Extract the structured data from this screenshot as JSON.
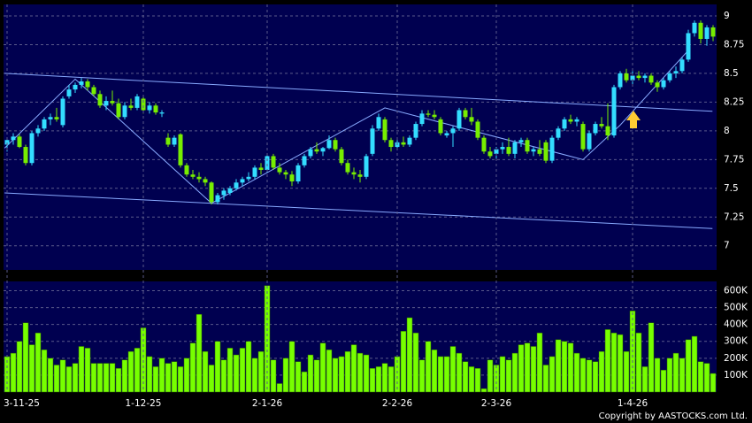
{
  "chart_data": [
    {
      "type": "candlestick",
      "up_color": "#33ddff",
      "down_color": "#77ee00",
      "ylim": [
        6.79,
        9.1
      ],
      "yticks": [
        7,
        7.25,
        7.5,
        7.75,
        8,
        8.25,
        8.5,
        8.75,
        9
      ],
      "grid": true,
      "ohlc": [
        [
          7.88,
          7.92,
          7.82,
          7.92
        ],
        [
          7.92,
          7.98,
          7.88,
          7.95
        ],
        [
          7.95,
          7.97,
          7.85,
          7.86
        ],
        [
          7.86,
          7.88,
          7.7,
          7.72
        ],
        [
          7.72,
          8.0,
          7.7,
          7.98
        ],
        [
          7.98,
          8.05,
          7.95,
          8.02
        ],
        [
          8.02,
          8.12,
          8.0,
          8.1
        ],
        [
          8.1,
          8.15,
          8.05,
          8.12
        ],
        [
          8.12,
          8.2,
          8.08,
          8.1
        ],
        [
          8.05,
          8.3,
          8.03,
          8.28
        ],
        [
          8.3,
          8.4,
          8.28,
          8.36
        ],
        [
          8.36,
          8.42,
          8.33,
          8.4
        ],
        [
          8.4,
          8.46,
          8.37,
          8.43
        ],
        [
          8.43,
          8.45,
          8.35,
          8.38
        ],
        [
          8.38,
          8.4,
          8.3,
          8.32
        ],
        [
          8.32,
          8.35,
          8.2,
          8.22
        ],
        [
          8.22,
          8.3,
          8.18,
          8.26
        ],
        [
          8.26,
          8.35,
          8.22,
          8.24
        ],
        [
          8.24,
          8.28,
          8.1,
          8.12
        ],
        [
          8.12,
          8.25,
          8.1,
          8.22
        ],
        [
          8.22,
          8.28,
          8.18,
          8.2
        ],
        [
          8.2,
          8.32,
          8.18,
          8.3
        ],
        [
          8.28,
          8.3,
          8.15,
          8.18
        ],
        [
          8.18,
          8.25,
          8.15,
          8.22
        ],
        [
          8.22,
          8.24,
          8.14,
          8.16
        ],
        [
          8.15,
          8.18,
          8.12,
          8.16
        ],
        [
          7.94,
          7.98,
          7.86,
          7.88
        ],
        [
          7.88,
          7.96,
          7.86,
          7.94
        ],
        [
          7.97,
          7.98,
          7.68,
          7.7
        ],
        [
          7.7,
          7.72,
          7.6,
          7.62
        ],
        [
          7.62,
          7.66,
          7.58,
          7.6
        ],
        [
          7.6,
          7.64,
          7.55,
          7.58
        ],
        [
          7.58,
          7.6,
          7.52,
          7.55
        ],
        [
          7.55,
          7.56,
          7.36,
          7.38
        ],
        [
          7.38,
          7.46,
          7.36,
          7.44
        ],
        [
          7.44,
          7.5,
          7.4,
          7.48
        ],
        [
          7.46,
          7.52,
          7.44,
          7.5
        ],
        [
          7.5,
          7.58,
          7.48,
          7.55
        ],
        [
          7.55,
          7.6,
          7.52,
          7.58
        ],
        [
          7.58,
          7.64,
          7.56,
          7.6
        ],
        [
          7.6,
          7.7,
          7.58,
          7.68
        ],
        [
          7.68,
          7.72,
          7.62,
          7.66
        ],
        [
          7.66,
          7.8,
          7.64,
          7.78
        ],
        [
          7.78,
          7.8,
          7.66,
          7.68
        ],
        [
          7.68,
          7.72,
          7.62,
          7.64
        ],
        [
          7.64,
          7.66,
          7.58,
          7.62
        ],
        [
          7.62,
          7.65,
          7.52,
          7.56
        ],
        [
          7.56,
          7.72,
          7.54,
          7.7
        ],
        [
          7.7,
          7.8,
          7.68,
          7.78
        ],
        [
          7.78,
          7.86,
          7.76,
          7.84
        ],
        [
          7.84,
          7.9,
          7.8,
          7.82
        ],
        [
          7.82,
          7.86,
          7.78,
          7.85
        ],
        [
          7.85,
          7.96,
          7.84,
          7.92
        ],
        [
          7.92,
          7.94,
          7.82,
          7.84
        ],
        [
          7.84,
          7.86,
          7.7,
          7.72
        ],
        [
          7.72,
          7.75,
          7.62,
          7.64
        ],
        [
          7.64,
          7.68,
          7.58,
          7.62
        ],
        [
          7.62,
          7.66,
          7.55,
          7.6
        ],
        [
          7.6,
          7.8,
          7.58,
          7.78
        ],
        [
          7.8,
          8.05,
          7.78,
          8.02
        ],
        [
          8.02,
          8.15,
          8.0,
          8.12
        ],
        [
          8.1,
          8.12,
          7.9,
          7.92
        ],
        [
          7.92,
          7.94,
          7.82,
          7.86
        ],
        [
          7.86,
          7.92,
          7.84,
          7.9
        ],
        [
          7.9,
          7.95,
          7.86,
          7.88
        ],
        [
          7.88,
          7.96,
          7.86,
          7.94
        ],
        [
          7.94,
          8.08,
          7.92,
          8.06
        ],
        [
          8.06,
          8.18,
          8.04,
          8.15
        ],
        [
          8.15,
          8.18,
          8.12,
          8.14
        ],
        [
          8.14,
          8.18,
          8.1,
          8.12
        ],
        [
          8.1,
          8.12,
          7.96,
          7.98
        ],
        [
          7.96,
          8.0,
          7.94,
          7.98
        ],
        [
          7.98,
          8.04,
          7.86,
          8.02
        ],
        [
          8.02,
          8.2,
          8.0,
          8.18
        ],
        [
          8.18,
          8.2,
          8.1,
          8.12
        ],
        [
          8.12,
          8.2,
          8.05,
          8.08
        ],
        [
          8.08,
          8.1,
          7.92,
          7.94
        ],
        [
          7.94,
          7.96,
          7.8,
          7.82
        ],
        [
          7.82,
          7.86,
          7.76,
          7.78
        ],
        [
          7.8,
          7.86,
          7.74,
          7.84
        ],
        [
          7.84,
          7.9,
          7.8,
          7.86
        ],
        [
          7.86,
          7.94,
          7.78,
          7.8
        ],
        [
          7.8,
          7.92,
          7.76,
          7.9
        ],
        [
          7.9,
          7.94,
          7.86,
          7.92
        ],
        [
          7.92,
          7.94,
          7.8,
          7.82
        ],
        [
          7.82,
          7.86,
          7.78,
          7.84
        ],
        [
          7.84,
          7.92,
          7.78,
          7.8
        ],
        [
          7.9,
          7.92,
          7.72,
          7.74
        ],
        [
          7.74,
          7.96,
          7.72,
          7.94
        ],
        [
          7.94,
          8.04,
          7.92,
          8.02
        ],
        [
          8.02,
          8.12,
          8.0,
          8.1
        ],
        [
          8.1,
          8.14,
          8.06,
          8.08
        ],
        [
          8.08,
          8.12,
          8.04,
          8.1
        ],
        [
          8.06,
          8.08,
          7.82,
          7.84
        ],
        [
          7.84,
          8.0,
          7.82,
          7.98
        ],
        [
          7.98,
          8.08,
          7.96,
          8.06
        ],
        [
          8.06,
          8.12,
          8.02,
          8.04
        ],
        [
          8.04,
          8.24,
          7.92,
          7.96
        ],
        [
          7.96,
          8.4,
          7.94,
          8.38
        ],
        [
          8.38,
          8.52,
          8.36,
          8.5
        ],
        [
          8.5,
          8.54,
          8.42,
          8.44
        ],
        [
          8.44,
          8.52,
          8.4,
          8.48
        ],
        [
          8.48,
          8.52,
          8.44,
          8.46
        ],
        [
          8.46,
          8.5,
          8.42,
          8.48
        ],
        [
          8.48,
          8.5,
          8.4,
          8.42
        ],
        [
          8.42,
          8.44,
          8.34,
          8.38
        ],
        [
          8.38,
          8.46,
          8.36,
          8.44
        ],
        [
          8.44,
          8.52,
          8.42,
          8.5
        ],
        [
          8.5,
          8.56,
          8.46,
          8.52
        ],
        [
          8.52,
          8.64,
          8.5,
          8.62
        ],
        [
          8.62,
          8.88,
          8.6,
          8.85
        ],
        [
          8.85,
          8.96,
          8.82,
          8.94
        ],
        [
          8.94,
          8.96,
          8.76,
          8.8
        ],
        [
          8.8,
          8.92,
          8.74,
          8.9
        ],
        [
          8.9,
          8.92,
          8.78,
          8.82
        ]
      ],
      "trendline_color": "#88aaff",
      "trendlines": [
        [
          [
            -0.4,
            8.5
          ],
          [
            113.9,
            8.17
          ]
        ],
        [
          [
            -0.4,
            7.46
          ],
          [
            113.9,
            7.15
          ]
        ],
        [
          [
            -0.4,
            7.85
          ],
          [
            11,
            8.45
          ],
          [
            33,
            7.37
          ],
          [
            61,
            8.2
          ],
          [
            93,
            7.75
          ],
          [
            99,
            8.05
          ],
          [
            110,
            8.7
          ]
        ]
      ]
    },
    {
      "type": "bar",
      "color": "#77ff00",
      "ylim": [
        0,
        655000
      ],
      "yticks": [
        {
          "value": 100000,
          "label": "100K"
        },
        {
          "value": 200000,
          "label": "200K"
        },
        {
          "value": 300000,
          "label": "300K"
        },
        {
          "value": 400000,
          "label": "400K"
        },
        {
          "value": 500000,
          "label": "500K"
        },
        {
          "value": 600000,
          "label": "600K"
        }
      ],
      "grid": true,
      "categories": [
        "3-11-25",
        null,
        null,
        null,
        null,
        null,
        null,
        null,
        null,
        null,
        null,
        null,
        null,
        null,
        null,
        null,
        null,
        null,
        null,
        null,
        null,
        null,
        "1-12-25",
        null,
        null,
        null,
        null,
        null,
        null,
        null,
        null,
        null,
        null,
        null,
        null,
        null,
        null,
        null,
        null,
        null,
        null,
        null,
        "2-1-26",
        null,
        null,
        null,
        null,
        null,
        null,
        null,
        null,
        null,
        null,
        null,
        null,
        null,
        null,
        null,
        null,
        null,
        null,
        null,
        null,
        "2-2-26",
        null,
        null,
        null,
        null,
        null,
        null,
        null,
        null,
        null,
        null,
        null,
        null,
        null,
        null,
        null,
        "2-3-26",
        null,
        null,
        null,
        null,
        null,
        null,
        null,
        null,
        null,
        null,
        null,
        null,
        null,
        null,
        null,
        null,
        null,
        null,
        null,
        null,
        null,
        "1-4-26",
        null,
        null,
        null,
        null,
        null,
        null,
        null,
        null,
        null,
        null,
        null,
        null,
        null
      ],
      "values": [
        210000,
        230000,
        300000,
        410000,
        280000,
        350000,
        250000,
        200000,
        160000,
        190000,
        150000,
        170000,
        270000,
        260000,
        170000,
        170000,
        170000,
        170000,
        140000,
        190000,
        240000,
        260000,
        380000,
        210000,
        150000,
        200000,
        170000,
        180000,
        150000,
        200000,
        290000,
        460000,
        240000,
        160000,
        300000,
        190000,
        260000,
        220000,
        260000,
        300000,
        200000,
        240000,
        630000,
        190000,
        50000,
        200000,
        300000,
        180000,
        120000,
        220000,
        190000,
        290000,
        250000,
        200000,
        210000,
        240000,
        280000,
        230000,
        220000,
        140000,
        150000,
        170000,
        150000,
        210000,
        360000,
        440000,
        350000,
        190000,
        300000,
        250000,
        210000,
        210000,
        270000,
        230000,
        180000,
        150000,
        140000,
        20000,
        190000,
        160000,
        210000,
        190000,
        230000,
        280000,
        290000,
        270000,
        350000,
        160000,
        210000,
        310000,
        300000,
        290000,
        230000,
        200000,
        190000,
        180000,
        240000,
        370000,
        350000,
        340000,
        240000,
        480000,
        350000,
        150000,
        410000,
        200000,
        130000,
        200000,
        230000,
        200000,
        310000,
        330000,
        180000,
        170000,
        110000
      ]
    }
  ],
  "footer": "Copyright by AASTOCKS.com Ltd."
}
